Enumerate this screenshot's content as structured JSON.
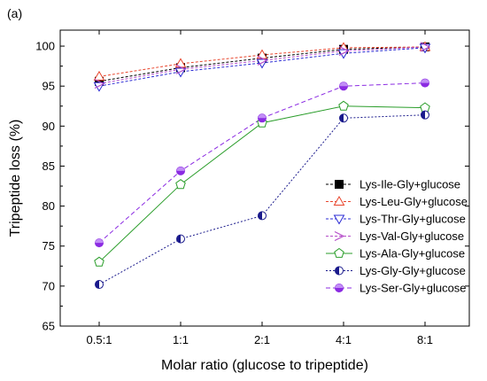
{
  "chart_data": {
    "type": "line",
    "panel_label": "(a)",
    "xlabel": "Molar ratio (glucose to tripeptide)",
    "ylabel": "Tripeptide loss (%)",
    "categories": [
      "0.5:1",
      "1:1",
      "2:1",
      "4:1",
      "8:1"
    ],
    "ylim": [
      65,
      102
    ],
    "yticks": [
      65,
      70,
      75,
      80,
      85,
      90,
      95,
      100
    ],
    "grid": false,
    "legend_position": "right-middle",
    "series": [
      {
        "name": "Lys-Ile-Gly+glucose",
        "values": [
          95.6,
          97.3,
          98.5,
          99.6,
          99.9
        ],
        "color": "#000000",
        "marker": "square-filled",
        "dash": "3,2"
      },
      {
        "name": "Lys-Leu-Gly+glucose",
        "values": [
          96.2,
          97.8,
          98.9,
          99.8,
          99.9
        ],
        "color": "#e8452c",
        "marker": "triangle-up-open",
        "dash": "3,2"
      },
      {
        "name": "Lys-Thr-Gly+glucose",
        "values": [
          95.0,
          96.8,
          97.9,
          99.1,
          99.8
        ],
        "color": "#2b2bd4",
        "marker": "triangle-down-open",
        "dash": "3,2"
      },
      {
        "name": "Lys-Val-Gly+glucose",
        "values": [
          95.3,
          97.1,
          98.2,
          99.4,
          99.9
        ],
        "color": "#b54ec9",
        "marker": "arrow-right",
        "dash": "3,2"
      },
      {
        "name": "Lys-Ala-Gly+glucose",
        "values": [
          73.0,
          82.7,
          90.4,
          92.5,
          92.3
        ],
        "color": "#2a9d2a",
        "marker": "pentagon-open",
        "dash": ""
      },
      {
        "name": "Lys-Gly-Gly+glucose",
        "values": [
          70.2,
          75.9,
          78.8,
          91.0,
          91.4
        ],
        "color": "#1a1a8c",
        "marker": "circle-half-left",
        "dash": "2,2"
      },
      {
        "name": "Lys-Ser-Gly+glucose",
        "values": [
          75.4,
          84.4,
          91.0,
          95.0,
          95.4
        ],
        "color": "#8b2be2",
        "marker": "circle-half-bottom",
        "dash": "5,3"
      }
    ]
  }
}
